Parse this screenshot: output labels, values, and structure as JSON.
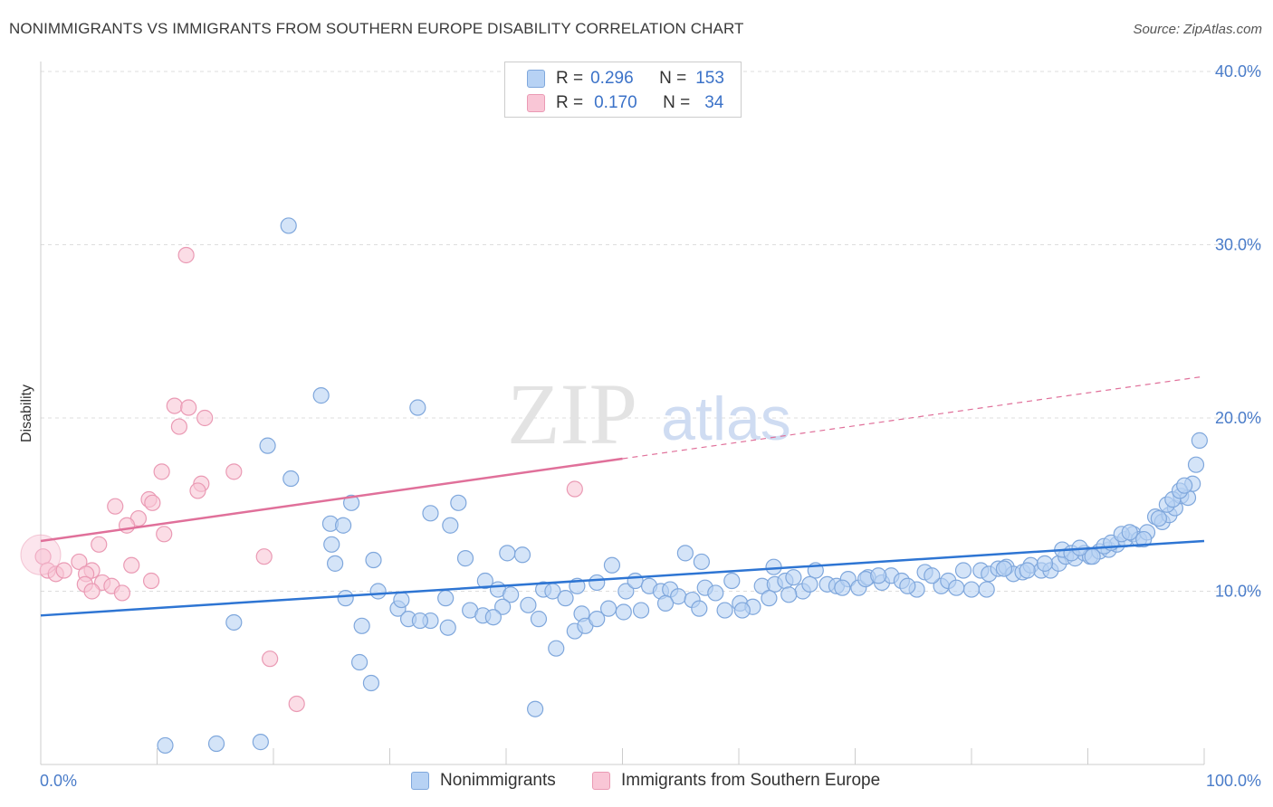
{
  "header": {
    "title": "NONIMMIGRANTS VS IMMIGRANTS FROM SOUTHERN EUROPE DISABILITY CORRELATION CHART",
    "source": "Source: ZipAtlas.com"
  },
  "legend": {
    "rows": [
      {
        "r_label": "R =",
        "r_value": "0.296",
        "n_label": "N =",
        "n_value": "153"
      },
      {
        "r_label": "R =",
        "r_value": "0.170",
        "n_label": "N =",
        "n_value": "34"
      }
    ]
  },
  "bottom_legend": {
    "items": [
      "Nonimmigrants",
      "Immigrants from Southern Europe"
    ]
  },
  "watermark": {
    "zip": "ZIP",
    "atlas": "atlas"
  },
  "colors": {
    "blue_fill": "#b7d2f4",
    "blue_stroke": "#7fa7dc",
    "blue_line": "#2e75d3",
    "pink_fill": "#f9c6d6",
    "pink_stroke": "#ea9ab4",
    "pink_line": "#e0709a",
    "grid": "#dddddd",
    "tick_text": "#4a7cc9"
  },
  "chart_data": {
    "type": "scatter",
    "title": "NONIMMIGRANTS VS IMMIGRANTS FROM SOUTHERN EUROPE DISABILITY CORRELATION CHART",
    "xlabel": "",
    "ylabel": "Disability",
    "xlim": [
      0,
      100
    ],
    "ylim": [
      0,
      40
    ],
    "x_tick_labels": [
      "0.0%",
      "100.0%"
    ],
    "y_ticks": [
      10,
      20,
      30,
      40
    ],
    "y_tick_labels": [
      "10.0%",
      "20.0%",
      "30.0%",
      "40.0%"
    ],
    "grid": true,
    "series": [
      {
        "name": "Nonimmigrants",
        "r": 0.296,
        "n": 153,
        "trend": {
          "x0": 0,
          "y0": 8.6,
          "x1": 100,
          "y1": 12.9
        },
        "points": [
          [
            21.3,
            31.1
          ],
          [
            24.1,
            21.3
          ],
          [
            32.4,
            20.6
          ],
          [
            19.5,
            18.4
          ],
          [
            21.5,
            16.5
          ],
          [
            26.7,
            15.1
          ],
          [
            35.9,
            15.1
          ],
          [
            24.9,
            13.9
          ],
          [
            26.0,
            13.8
          ],
          [
            35.2,
            13.8
          ],
          [
            40.1,
            12.2
          ],
          [
            41.4,
            12.1
          ],
          [
            25.3,
            11.6
          ],
          [
            28.6,
            11.8
          ],
          [
            36.5,
            11.9
          ],
          [
            49.1,
            11.5
          ],
          [
            38.2,
            10.6
          ],
          [
            39.3,
            10.1
          ],
          [
            40.4,
            9.8
          ],
          [
            43.2,
            10.1
          ],
          [
            46.1,
            10.3
          ],
          [
            29.0,
            10.0
          ],
          [
            30.7,
            9.0
          ],
          [
            31.0,
            9.5
          ],
          [
            26.2,
            9.6
          ],
          [
            33.5,
            8.3
          ],
          [
            34.8,
            9.6
          ],
          [
            36.9,
            8.9
          ],
          [
            38.0,
            8.6
          ],
          [
            39.7,
            9.1
          ],
          [
            41.9,
            9.2
          ],
          [
            42.8,
            8.4
          ],
          [
            44.0,
            10.0
          ],
          [
            45.1,
            9.6
          ],
          [
            46.5,
            8.7
          ],
          [
            47.8,
            10.5
          ],
          [
            48.8,
            9.0
          ],
          [
            50.3,
            10.0
          ],
          [
            51.1,
            10.6
          ],
          [
            52.3,
            10.3
          ],
          [
            53.3,
            10.0
          ],
          [
            54.1,
            10.1
          ],
          [
            54.8,
            9.7
          ],
          [
            56.0,
            9.5
          ],
          [
            57.1,
            10.2
          ],
          [
            58.0,
            9.9
          ],
          [
            59.4,
            10.6
          ],
          [
            60.1,
            9.3
          ],
          [
            61.2,
            9.1
          ],
          [
            62.0,
            10.3
          ],
          [
            63.1,
            10.4
          ],
          [
            64.0,
            10.6
          ],
          [
            64.7,
            10.8
          ],
          [
            65.5,
            10.0
          ],
          [
            66.6,
            11.2
          ],
          [
            67.6,
            10.4
          ],
          [
            68.4,
            10.3
          ],
          [
            69.4,
            10.7
          ],
          [
            70.3,
            10.2
          ],
          [
            71.1,
            10.8
          ],
          [
            72.3,
            10.5
          ],
          [
            73.1,
            10.9
          ],
          [
            74.0,
            10.6
          ],
          [
            75.3,
            10.1
          ],
          [
            76.0,
            11.1
          ],
          [
            77.4,
            10.3
          ],
          [
            78.0,
            10.6
          ],
          [
            79.3,
            11.2
          ],
          [
            80.0,
            10.1
          ],
          [
            80.8,
            11.2
          ],
          [
            81.5,
            11.0
          ],
          [
            82.3,
            11.3
          ],
          [
            83.0,
            11.4
          ],
          [
            83.6,
            11.0
          ],
          [
            84.4,
            11.1
          ],
          [
            85.1,
            11.5
          ],
          [
            86.0,
            11.2
          ],
          [
            86.8,
            11.2
          ],
          [
            87.5,
            11.6
          ],
          [
            88.1,
            12.0
          ],
          [
            88.9,
            11.9
          ],
          [
            89.7,
            12.2
          ],
          [
            90.2,
            12.0
          ],
          [
            91.0,
            12.3
          ],
          [
            91.8,
            12.4
          ],
          [
            92.5,
            12.7
          ],
          [
            93.2,
            13.0
          ],
          [
            93.9,
            13.3
          ],
          [
            94.4,
            13.0
          ],
          [
            95.1,
            13.4
          ],
          [
            95.8,
            14.3
          ],
          [
            96.4,
            14.0
          ],
          [
            97.0,
            14.4
          ],
          [
            97.5,
            14.8
          ],
          [
            98.0,
            15.5
          ],
          [
            98.6,
            15.4
          ],
          [
            99.0,
            16.2
          ],
          [
            99.3,
            17.3
          ],
          [
            99.6,
            18.7
          ],
          [
            16.6,
            8.2
          ],
          [
            27.6,
            8.0
          ],
          [
            27.4,
            5.9
          ],
          [
            28.4,
            4.7
          ],
          [
            31.6,
            8.4
          ],
          [
            32.6,
            8.3
          ],
          [
            35.0,
            7.9
          ],
          [
            38.9,
            8.5
          ],
          [
            44.3,
            6.7
          ],
          [
            45.9,
            7.7
          ],
          [
            46.8,
            8.0
          ],
          [
            47.8,
            8.4
          ],
          [
            50.1,
            8.8
          ],
          [
            51.6,
            8.9
          ],
          [
            53.7,
            9.3
          ],
          [
            56.6,
            9.0
          ],
          [
            58.8,
            8.9
          ],
          [
            60.3,
            8.9
          ],
          [
            62.6,
            9.6
          ],
          [
            64.3,
            9.8
          ],
          [
            66.1,
            10.4
          ],
          [
            68.9,
            10.2
          ],
          [
            70.9,
            10.7
          ],
          [
            72.0,
            10.9
          ],
          [
            74.5,
            10.3
          ],
          [
            76.6,
            10.9
          ],
          [
            78.7,
            10.2
          ],
          [
            81.3,
            10.1
          ],
          [
            82.8,
            11.3
          ],
          [
            84.8,
            11.2
          ],
          [
            86.3,
            11.6
          ],
          [
            87.8,
            12.4
          ],
          [
            88.6,
            12.2
          ],
          [
            89.3,
            12.5
          ],
          [
            90.4,
            12.0
          ],
          [
            91.4,
            12.6
          ],
          [
            92.0,
            12.8
          ],
          [
            92.9,
            13.3
          ],
          [
            93.6,
            13.4
          ],
          [
            94.8,
            13.0
          ],
          [
            96.1,
            14.2
          ],
          [
            96.8,
            15.0
          ],
          [
            97.3,
            15.3
          ],
          [
            97.9,
            15.8
          ],
          [
            98.3,
            16.1
          ],
          [
            18.9,
            1.3
          ],
          [
            33.5,
            14.5
          ],
          [
            42.5,
            3.2
          ],
          [
            25.0,
            12.7
          ],
          [
            63.0,
            11.4
          ],
          [
            55.4,
            12.2
          ],
          [
            56.8,
            11.7
          ],
          [
            10.7,
            1.1
          ],
          [
            15.1,
            1.2
          ]
        ]
      },
      {
        "name": "Immigrants from Southern Europe",
        "r": 0.17,
        "n": 34,
        "trend": {
          "x0": 0,
          "y0": 12.9,
          "x1": 100,
          "y1": 22.4
        },
        "dashed_after_x": 50,
        "points": [
          [
            12.5,
            29.4
          ],
          [
            11.5,
            20.7
          ],
          [
            12.7,
            20.6
          ],
          [
            14.1,
            20.0
          ],
          [
            11.9,
            19.5
          ],
          [
            16.6,
            16.9
          ],
          [
            10.4,
            16.9
          ],
          [
            13.8,
            16.2
          ],
          [
            13.5,
            15.8
          ],
          [
            45.9,
            15.9
          ],
          [
            9.3,
            15.3
          ],
          [
            9.6,
            15.1
          ],
          [
            6.4,
            14.9
          ],
          [
            8.4,
            14.2
          ],
          [
            7.4,
            13.8
          ],
          [
            10.6,
            13.3
          ],
          [
            5.0,
            12.7
          ],
          [
            19.2,
            12.0
          ],
          [
            0.2,
            12.0
          ],
          [
            3.3,
            11.7
          ],
          [
            7.8,
            11.5
          ],
          [
            4.4,
            11.2
          ],
          [
            0.6,
            11.2
          ],
          [
            1.3,
            11.0
          ],
          [
            2.0,
            11.2
          ],
          [
            3.9,
            11.0
          ],
          [
            5.3,
            10.5
          ],
          [
            9.5,
            10.6
          ],
          [
            3.8,
            10.4
          ],
          [
            6.1,
            10.3
          ],
          [
            4.4,
            10.0
          ],
          [
            7.0,
            9.9
          ],
          [
            19.7,
            6.1
          ],
          [
            22.0,
            3.5
          ]
        ]
      }
    ]
  }
}
